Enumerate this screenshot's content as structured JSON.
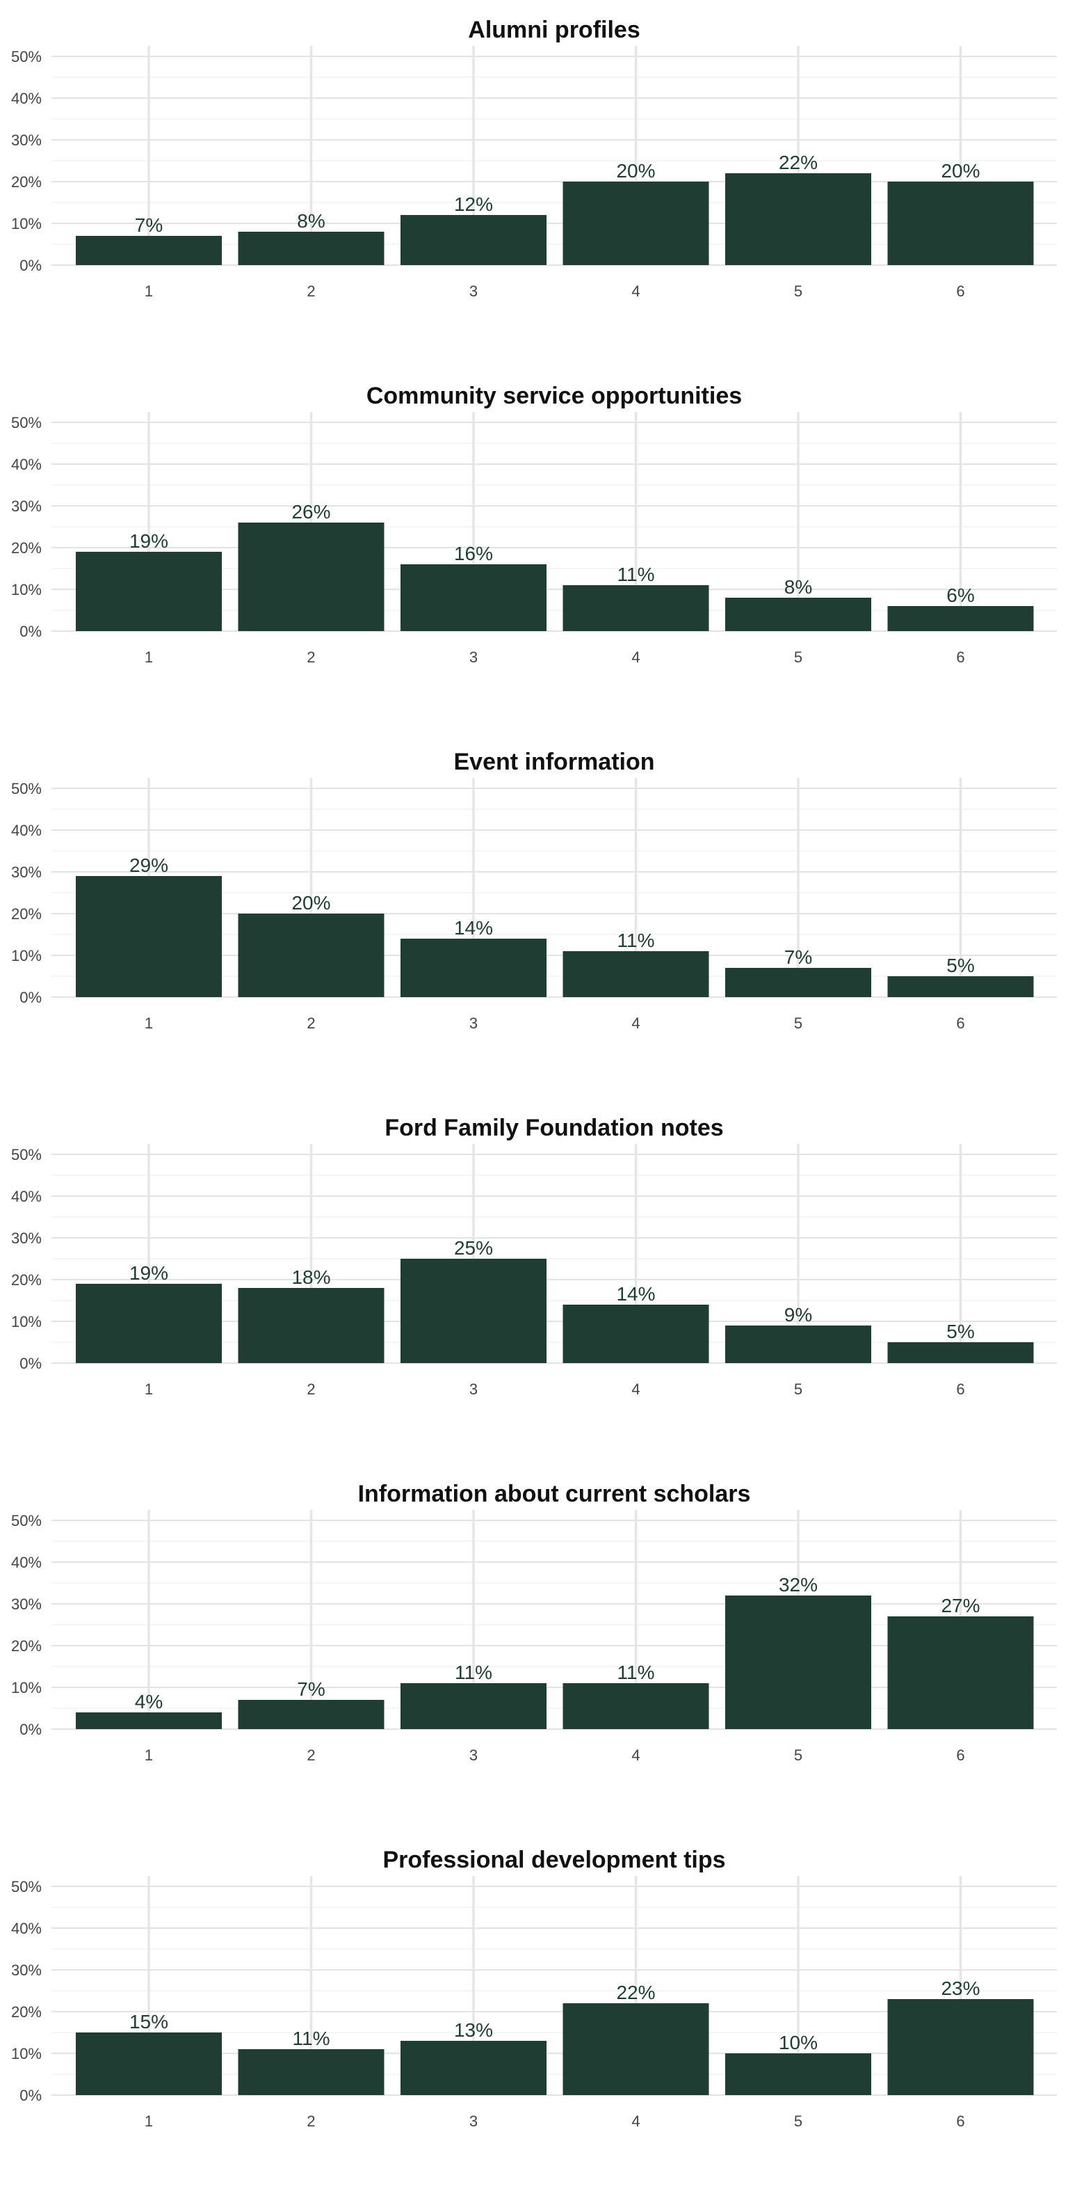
{
  "bar_color": "#1f3d32",
  "chart_data": [
    {
      "type": "bar",
      "title": "Alumni profiles",
      "categories": [
        "1",
        "2",
        "3",
        "4",
        "5",
        "6"
      ],
      "values": [
        7,
        8,
        12,
        20,
        22,
        20
      ],
      "labels": [
        "7%",
        "8%",
        "12%",
        "20%",
        "22%",
        "20%"
      ],
      "yticks": [
        "0%",
        "10%",
        "20%",
        "30%",
        "40%",
        "50%"
      ],
      "ylim": [
        0,
        52
      ],
      "grid": true
    },
    {
      "type": "bar",
      "title": "Community service opportunities",
      "categories": [
        "1",
        "2",
        "3",
        "4",
        "5",
        "6"
      ],
      "values": [
        19,
        26,
        16,
        11,
        8,
        6
      ],
      "labels": [
        "19%",
        "26%",
        "16%",
        "11%",
        "8%",
        "6%"
      ],
      "yticks": [
        "0%",
        "10%",
        "20%",
        "30%",
        "40%",
        "50%"
      ],
      "ylim": [
        0,
        52
      ],
      "grid": true
    },
    {
      "type": "bar",
      "title": "Event information",
      "categories": [
        "1",
        "2",
        "3",
        "4",
        "5",
        "6"
      ],
      "values": [
        29,
        20,
        14,
        11,
        7,
        5
      ],
      "labels": [
        "29%",
        "20%",
        "14%",
        "11%",
        "7%",
        "5%"
      ],
      "yticks": [
        "0%",
        "10%",
        "20%",
        "30%",
        "40%",
        "50%"
      ],
      "ylim": [
        0,
        52
      ],
      "grid": true
    },
    {
      "type": "bar",
      "title": "Ford Family Foundation notes",
      "categories": [
        "1",
        "2",
        "3",
        "4",
        "5",
        "6"
      ],
      "values": [
        19,
        18,
        25,
        14,
        9,
        5
      ],
      "labels": [
        "19%",
        "18%",
        "25%",
        "14%",
        "9%",
        "5%"
      ],
      "yticks": [
        "0%",
        "10%",
        "20%",
        "30%",
        "40%",
        "50%"
      ],
      "ylim": [
        0,
        52
      ],
      "grid": true
    },
    {
      "type": "bar",
      "title": "Information about current scholars",
      "categories": [
        "1",
        "2",
        "3",
        "4",
        "5",
        "6"
      ],
      "values": [
        4,
        7,
        11,
        11,
        32,
        27
      ],
      "labels": [
        "4%",
        "7%",
        "11%",
        "11%",
        "32%",
        "27%"
      ],
      "yticks": [
        "0%",
        "10%",
        "20%",
        "30%",
        "40%",
        "50%"
      ],
      "ylim": [
        0,
        52
      ],
      "grid": true
    },
    {
      "type": "bar",
      "title": "Professional development tips",
      "categories": [
        "1",
        "2",
        "3",
        "4",
        "5",
        "6"
      ],
      "values": [
        15,
        11,
        13,
        22,
        10,
        23
      ],
      "labels": [
        "15%",
        "11%",
        "13%",
        "22%",
        "10%",
        "23%"
      ],
      "yticks": [
        "0%",
        "10%",
        "20%",
        "30%",
        "40%",
        "50%"
      ],
      "ylim": [
        0,
        52
      ],
      "grid": true
    }
  ]
}
